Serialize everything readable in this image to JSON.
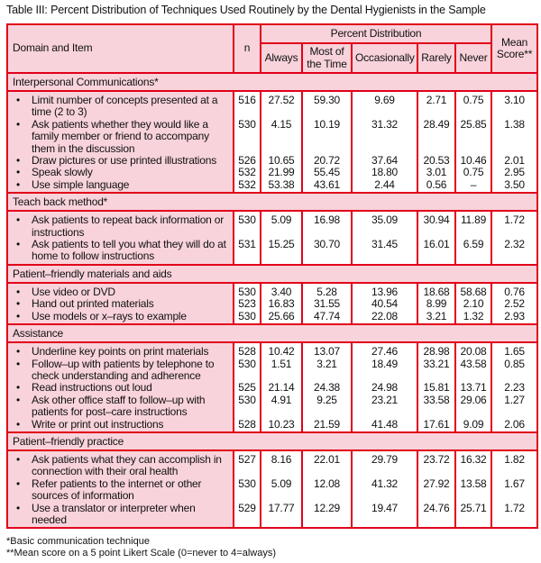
{
  "title": "Table III: Percent Distribution of Techniques Used Routinely by the Dental Hygienists in the Sample",
  "headers": {
    "domain": "Domain and Item",
    "n": "n",
    "percent": "Percent Distribution",
    "always": "Always",
    "most": "Most of the Time",
    "occasionally": "Occasionally",
    "rarely": "Rarely",
    "never": "Never",
    "mean": "Mean Score**"
  },
  "sections": [
    {
      "name": "Interpersonal Communications*",
      "items": [
        {
          "item": "Limit number of concepts presented at a time (2 to 3)",
          "n": "516",
          "always": "27.52",
          "most": "59.30",
          "occ": "9.69",
          "rarely": "2.71",
          "never": "0.75",
          "mean": "3.10"
        },
        {
          "item": "Ask patients whether they would like a family member or friend to accompany them in the discussion",
          "n": "530",
          "always": "4.15",
          "most": "10.19",
          "occ": "31.32",
          "rarely": "28.49",
          "never": "25.85",
          "mean": "1.38"
        },
        {
          "item": "Draw pictures or use printed illustrations",
          "n": "526",
          "always": "10.65",
          "most": "20.72",
          "occ": "37.64",
          "rarely": "20.53",
          "never": "10.46",
          "mean": "2.01"
        },
        {
          "item": "Speak slowly",
          "n": "532",
          "always": "21.99",
          "most": "55.45",
          "occ": "18.80",
          "rarely": "3.01",
          "never": "0.75",
          "mean": "2.95"
        },
        {
          "item": "Use simple language",
          "n": "532",
          "always": "53.38",
          "most": "43.61",
          "occ": "2.44",
          "rarely": "0.56",
          "never": "–",
          "mean": "3.50"
        }
      ]
    },
    {
      "name": "Teach back method*",
      "items": [
        {
          "item": "Ask patients to repeat back information or instructions",
          "n": "530",
          "always": "5.09",
          "most": "16.98",
          "occ": "35.09",
          "rarely": "30.94",
          "never": "11.89",
          "mean": "1.72"
        },
        {
          "item": "Ask patients to tell you what they will do at home to follow instructions",
          "n": "531",
          "always": "15.25",
          "most": "30.70",
          "occ": "31.45",
          "rarely": "16.01",
          "never": "6.59",
          "mean": "2.32"
        }
      ]
    },
    {
      "name": "Patient–friendly materials and aids",
      "items": [
        {
          "item": "Use video or DVD",
          "n": "530",
          "always": "3.40",
          "most": "5.28",
          "occ": "13.96",
          "rarely": "18.68",
          "never": "58.68",
          "mean": "0.76"
        },
        {
          "item": "Hand out printed materials",
          "n": "523",
          "always": "16.83",
          "most": "31.55",
          "occ": "40.54",
          "rarely": "8.99",
          "never": "2.10",
          "mean": "2.52"
        },
        {
          "item": "Use models or x–rays to example",
          "n": "530",
          "always": "25.66",
          "most": "47.74",
          "occ": "22.08",
          "rarely": "3.21",
          "never": "1.32",
          "mean": "2.93"
        }
      ]
    },
    {
      "name": "Assistance",
      "items": [
        {
          "item": "Underline key points on print materials",
          "n": "528",
          "always": "10.42",
          "most": "13.07",
          "occ": "27.46",
          "rarely": "28.98",
          "never": "20.08",
          "mean": "1.65"
        },
        {
          "item": "Follow–up with patients by telephone to check understanding and adherence",
          "n": "530",
          "always": "1.51",
          "most": "3.21",
          "occ": "18.49",
          "rarely": "33.21",
          "never": "43.58",
          "mean": "0.85"
        },
        {
          "item": "Read instructions out loud",
          "n": "525",
          "always": "21.14",
          "most": "24.38",
          "occ": "24.98",
          "rarely": "15.81",
          "never": "13.71",
          "mean": "2.23"
        },
        {
          "item": "Ask other office staff to follow–up with patients for post–care instructions",
          "n": "530",
          "always": "4.91",
          "most": "9.25",
          "occ": "23.21",
          "rarely": "33.58",
          "never": "29.06",
          "mean": "1.27"
        },
        {
          "item": "Write or print out instructions",
          "n": "528",
          "always": "10.23",
          "most": "21.59",
          "occ": "41.48",
          "rarely": "17.61",
          "never": "9.09",
          "mean": "2.06"
        }
      ]
    },
    {
      "name": "Patient–friendly practice",
      "items": [
        {
          "item": "Ask patients what they can accomplish in connection with their oral health",
          "n": "527",
          "always": "8.16",
          "most": "22.01",
          "occ": "29.79",
          "rarely": "23.72",
          "never": "16.32",
          "mean": "1.82"
        },
        {
          "item": "Refer patients to the internet or other sources of information",
          "n": "530",
          "always": "5.09",
          "most": "12.08",
          "occ": "41.32",
          "rarely": "27.92",
          "never": "13.58",
          "mean": "1.67"
        },
        {
          "item": "Use a translator or interpreter when needed",
          "n": "529",
          "always": "17.77",
          "most": "12.29",
          "occ": "19.47",
          "rarely": "24.76",
          "never": "25.71",
          "mean": "1.72"
        }
      ]
    }
  ],
  "footnotes": [
    "*Basic communication technique",
    "**Mean score on a 5 point Likert Scale (0=never to 4=always)"
  ]
}
